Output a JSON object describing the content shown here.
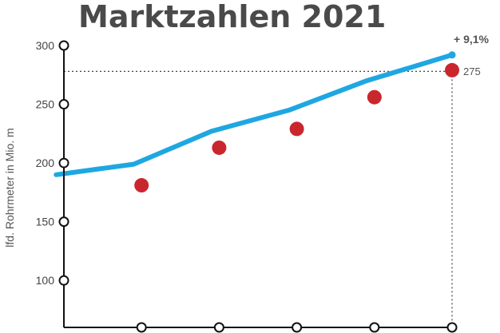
{
  "chart_data": {
    "type": "line",
    "title": "Marktzahlen 2021",
    "xlabel": "",
    "ylabel": "lfd. Rohrmeter in Mio. m",
    "ylim": [
      60,
      300
    ],
    "yticks": [
      100,
      150,
      200,
      250,
      300
    ],
    "xlim": [
      0,
      5
    ],
    "x_tick_positions": [
      1,
      2,
      3,
      4,
      5
    ],
    "grid": false,
    "series": [
      {
        "kind": "line",
        "color": "#1ea7e1",
        "x": [
          -0.1,
          0.9,
          1.9,
          2.9,
          3.9,
          5.0
        ],
        "values": [
          190,
          199,
          227,
          245,
          270,
          292
        ]
      },
      {
        "kind": "scatter",
        "color": "#c9272d",
        "x": [
          1,
          2,
          3,
          4,
          5
        ],
        "values": [
          181,
          213,
          229,
          256,
          279
        ]
      }
    ],
    "annotations": {
      "growth": "+ 9,1%",
      "end_value": "275",
      "reference_value": 278
    },
    "colors": {
      "axis": "#111111",
      "reference": "#444444",
      "title": "#4a4a4a"
    }
  }
}
